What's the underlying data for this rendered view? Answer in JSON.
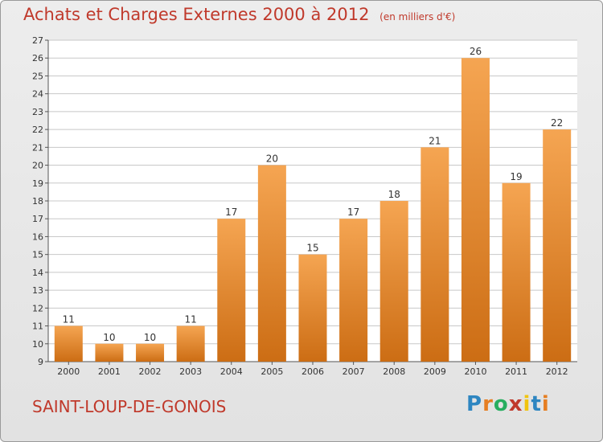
{
  "header": {
    "title": "Achats et Charges Externes 2000 à 2012",
    "unit": "(en milliers d'€)"
  },
  "footer": {
    "place": "SAINT-LOUP-DE-GONOIS",
    "brand": "Proxiti"
  },
  "colors": {
    "bar_top": "#f5a552",
    "bar_bottom": "#cc6d14",
    "title": "#c0392b",
    "grid": "#c8c8c8"
  },
  "chart_data": {
    "type": "bar",
    "title": "Achats et Charges Externes 2000 à 2012",
    "subtitle": "(en milliers d'€)",
    "categories": [
      "2000",
      "2001",
      "2002",
      "2003",
      "2004",
      "2005",
      "2006",
      "2007",
      "2008",
      "2009",
      "2010",
      "2011",
      "2012"
    ],
    "values": [
      11,
      10,
      10,
      11,
      17,
      20,
      15,
      17,
      18,
      21,
      26,
      19,
      22
    ],
    "ylim": [
      9,
      27
    ],
    "yticks": [
      9,
      10,
      11,
      12,
      13,
      14,
      15,
      16,
      17,
      18,
      19,
      20,
      21,
      22,
      23,
      24,
      25,
      26,
      27
    ],
    "grid": true,
    "data_labels": true
  }
}
